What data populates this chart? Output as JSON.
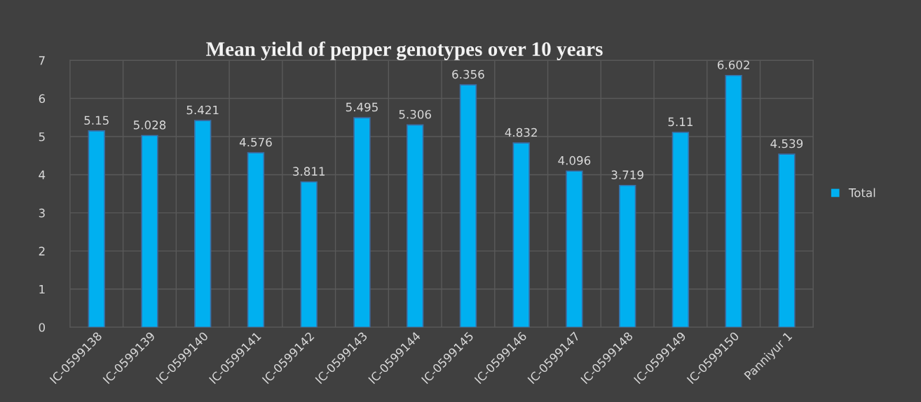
{
  "chart_data": {
    "type": "bar",
    "title": "Mean yield of pepper genotypes over 10 years",
    "categories": [
      "IC-0599138",
      "IC-0599139",
      "IC-0599140",
      "IC-0599141",
      "IC-0599142",
      "IC-0599143",
      "IC-0599144",
      "IC-0599145",
      "IC-0599146",
      "IC-0599147",
      "IC-0599148",
      "IC-0599149",
      "IC-0599150",
      "Panniyur 1"
    ],
    "series": [
      {
        "name": "Total",
        "color": "#00b0f0",
        "values": [
          5.15,
          5.028,
          5.421,
          4.576,
          3.811,
          5.495,
          5.306,
          6.356,
          4.832,
          4.096,
          3.719,
          5.11,
          6.602,
          4.539
        ],
        "value_labels": [
          "5.15",
          "5.028",
          "5.421",
          "4.576",
          "3.811",
          "5.495",
          "5.306",
          "6.356",
          "4.832",
          "4.096",
          "3.719",
          "5.11",
          "6.602",
          "4.539"
        ]
      }
    ],
    "ylim": [
      0,
      7
    ],
    "yticks": [
      0,
      1,
      2,
      3,
      4,
      5,
      6,
      7
    ],
    "grid": true,
    "legend": "right"
  }
}
